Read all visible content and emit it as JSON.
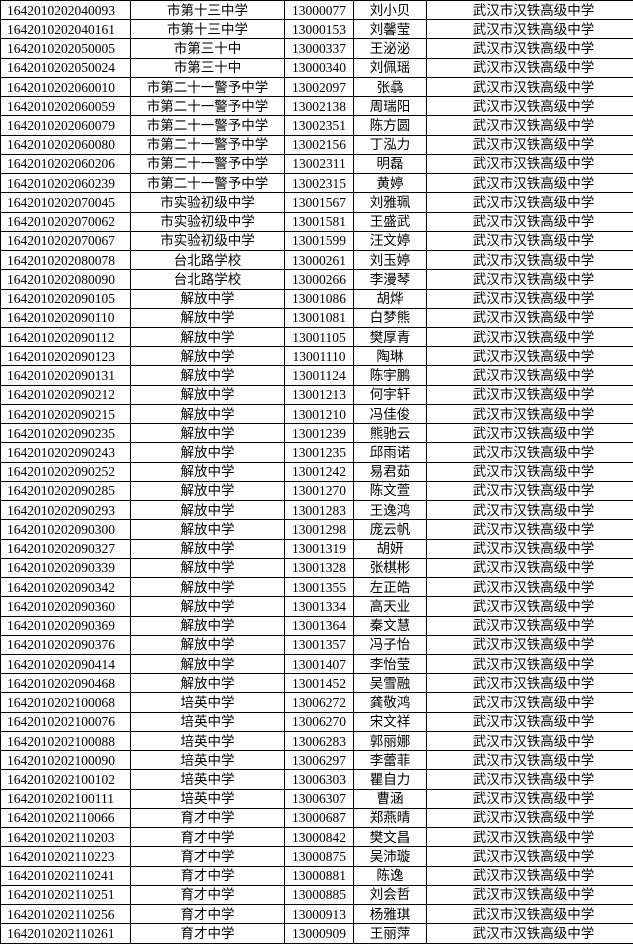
{
  "colors": {
    "background": "#ffffff",
    "border": "#000000",
    "text": "#000000"
  },
  "table": {
    "rows": [
      {
        "exam_id": "1642010202040093",
        "school": "市第十三中学",
        "code": "13000077",
        "name": "刘小贝",
        "admitted": "武汉市汉铁高级中学"
      },
      {
        "exam_id": "1642010202040161",
        "school": "市第十三中学",
        "code": "13000153",
        "name": "刘馨莹",
        "admitted": "武汉市汉铁高级中学"
      },
      {
        "exam_id": "1642010202050005",
        "school": "市第三十中",
        "code": "13000337",
        "name": "王泌泌",
        "admitted": "武汉市汉铁高级中学"
      },
      {
        "exam_id": "1642010202050024",
        "school": "市第三十中",
        "code": "13000340",
        "name": "刘佩瑶",
        "admitted": "武汉市汉铁高级中学"
      },
      {
        "exam_id": "1642010202060010",
        "school": "市第二十一警予中学",
        "code": "13002097",
        "name": "张骉",
        "admitted": "武汉市汉铁高级中学"
      },
      {
        "exam_id": "1642010202060059",
        "school": "市第二十一警予中学",
        "code": "13002138",
        "name": "周瑞阳",
        "admitted": "武汉市汉铁高级中学"
      },
      {
        "exam_id": "1642010202060079",
        "school": "市第二十一警予中学",
        "code": "13002351",
        "name": "陈方圆",
        "admitted": "武汉市汉铁高级中学"
      },
      {
        "exam_id": "1642010202060080",
        "school": "市第二十一警予中学",
        "code": "13002156",
        "name": "丁泓力",
        "admitted": "武汉市汉铁高级中学"
      },
      {
        "exam_id": "1642010202060206",
        "school": "市第二十一警予中学",
        "code": "13002311",
        "name": "明磊",
        "admitted": "武汉市汉铁高级中学"
      },
      {
        "exam_id": "1642010202060239",
        "school": "市第二十一警予中学",
        "code": "13002315",
        "name": "黄婷",
        "admitted": "武汉市汉铁高级中学"
      },
      {
        "exam_id": "1642010202070045",
        "school": "市实验初级中学",
        "code": "13001567",
        "name": "刘雅珮",
        "admitted": "武汉市汉铁高级中学"
      },
      {
        "exam_id": "1642010202070062",
        "school": "市实验初级中学",
        "code": "13001581",
        "name": "王盛武",
        "admitted": "武汉市汉铁高级中学"
      },
      {
        "exam_id": "1642010202070067",
        "school": "市实验初级中学",
        "code": "13001599",
        "name": "汪文婷",
        "admitted": "武汉市汉铁高级中学"
      },
      {
        "exam_id": "1642010202080078",
        "school": "台北路学校",
        "code": "13000261",
        "name": "刘玉婷",
        "admitted": "武汉市汉铁高级中学"
      },
      {
        "exam_id": "1642010202080090",
        "school": "台北路学校",
        "code": "13000266",
        "name": "李漫琴",
        "admitted": "武汉市汉铁高级中学"
      },
      {
        "exam_id": "1642010202090105",
        "school": "解放中学",
        "code": "13001086",
        "name": "胡烨",
        "admitted": "武汉市汉铁高级中学"
      },
      {
        "exam_id": "1642010202090110",
        "school": "解放中学",
        "code": "13001081",
        "name": "白梦熊",
        "admitted": "武汉市汉铁高级中学"
      },
      {
        "exam_id": "1642010202090112",
        "school": "解放中学",
        "code": "13001105",
        "name": "樊厚青",
        "admitted": "武汉市汉铁高级中学"
      },
      {
        "exam_id": "1642010202090123",
        "school": "解放中学",
        "code": "13001110",
        "name": "陶琳",
        "admitted": "武汉市汉铁高级中学"
      },
      {
        "exam_id": "1642010202090131",
        "school": "解放中学",
        "code": "13001124",
        "name": "陈宇鹏",
        "admitted": "武汉市汉铁高级中学"
      },
      {
        "exam_id": "1642010202090212",
        "school": "解放中学",
        "code": "13001213",
        "name": "何宇轩",
        "admitted": "武汉市汉铁高级中学"
      },
      {
        "exam_id": "1642010202090215",
        "school": "解放中学",
        "code": "13001210",
        "name": "冯佳俊",
        "admitted": "武汉市汉铁高级中学"
      },
      {
        "exam_id": "1642010202090235",
        "school": "解放中学",
        "code": "13001239",
        "name": "熊驰云",
        "admitted": "武汉市汉铁高级中学"
      },
      {
        "exam_id": "1642010202090243",
        "school": "解放中学",
        "code": "13001235",
        "name": "邱雨诺",
        "admitted": "武汉市汉铁高级中学"
      },
      {
        "exam_id": "1642010202090252",
        "school": "解放中学",
        "code": "13001242",
        "name": "易君茹",
        "admitted": "武汉市汉铁高级中学"
      },
      {
        "exam_id": "1642010202090285",
        "school": "解放中学",
        "code": "13001270",
        "name": "陈文萱",
        "admitted": "武汉市汉铁高级中学"
      },
      {
        "exam_id": "1642010202090293",
        "school": "解放中学",
        "code": "13001283",
        "name": "王逸鸿",
        "admitted": "武汉市汉铁高级中学"
      },
      {
        "exam_id": "1642010202090300",
        "school": "解放中学",
        "code": "13001298",
        "name": "庞云帆",
        "admitted": "武汉市汉铁高级中学"
      },
      {
        "exam_id": "1642010202090327",
        "school": "解放中学",
        "code": "13001319",
        "name": "胡妍",
        "admitted": "武汉市汉铁高级中学"
      },
      {
        "exam_id": "1642010202090339",
        "school": "解放中学",
        "code": "13001328",
        "name": "张棋彬",
        "admitted": "武汉市汉铁高级中学"
      },
      {
        "exam_id": "1642010202090342",
        "school": "解放中学",
        "code": "13001355",
        "name": "左正皓",
        "admitted": "武汉市汉铁高级中学"
      },
      {
        "exam_id": "1642010202090360",
        "school": "解放中学",
        "code": "13001334",
        "name": "高天业",
        "admitted": "武汉市汉铁高级中学"
      },
      {
        "exam_id": "1642010202090369",
        "school": "解放中学",
        "code": "13001364",
        "name": "秦文慧",
        "admitted": "武汉市汉铁高级中学"
      },
      {
        "exam_id": "1642010202090376",
        "school": "解放中学",
        "code": "13001357",
        "name": "冯子怡",
        "admitted": "武汉市汉铁高级中学"
      },
      {
        "exam_id": "1642010202090414",
        "school": "解放中学",
        "code": "13001407",
        "name": "李怡莹",
        "admitted": "武汉市汉铁高级中学"
      },
      {
        "exam_id": "1642010202090468",
        "school": "解放中学",
        "code": "13001452",
        "name": "吴雪融",
        "admitted": "武汉市汉铁高级中学"
      },
      {
        "exam_id": "1642010202100068",
        "school": "培英中学",
        "code": "13006272",
        "name": "龚敬鸿",
        "admitted": "武汉市汉铁高级中学"
      },
      {
        "exam_id": "1642010202100076",
        "school": "培英中学",
        "code": "13006270",
        "name": "宋文祥",
        "admitted": "武汉市汉铁高级中学"
      },
      {
        "exam_id": "1642010202100088",
        "school": "培英中学",
        "code": "13006283",
        "name": "郭丽娜",
        "admitted": "武汉市汉铁高级中学"
      },
      {
        "exam_id": "1642010202100090",
        "school": "培英中学",
        "code": "13006297",
        "name": "李蕾菲",
        "admitted": "武汉市汉铁高级中学"
      },
      {
        "exam_id": "1642010202100102",
        "school": "培英中学",
        "code": "13006303",
        "name": "瞿自力",
        "admitted": "武汉市汉铁高级中学"
      },
      {
        "exam_id": "1642010202100111",
        "school": "培英中学",
        "code": "13006307",
        "name": "曹涵",
        "admitted": "武汉市汉铁高级中学"
      },
      {
        "exam_id": "1642010202110066",
        "school": "育才中学",
        "code": "13000687",
        "name": "郑燕晴",
        "admitted": "武汉市汉铁高级中学"
      },
      {
        "exam_id": "1642010202110203",
        "school": "育才中学",
        "code": "13000842",
        "name": "樊文昌",
        "admitted": "武汉市汉铁高级中学"
      },
      {
        "exam_id": "1642010202110223",
        "school": "育才中学",
        "code": "13000875",
        "name": "吴沛璇",
        "admitted": "武汉市汉铁高级中学"
      },
      {
        "exam_id": "1642010202110241",
        "school": "育才中学",
        "code": "13000881",
        "name": "陈逸",
        "admitted": "武汉市汉铁高级中学"
      },
      {
        "exam_id": "1642010202110251",
        "school": "育才中学",
        "code": "13000885",
        "name": "刘会哲",
        "admitted": "武汉市汉铁高级中学"
      },
      {
        "exam_id": "1642010202110256",
        "school": "育才中学",
        "code": "13000913",
        "name": "杨雅琪",
        "admitted": "武汉市汉铁高级中学"
      },
      {
        "exam_id": "1642010202110261",
        "school": "育才中学",
        "code": "13000909",
        "name": "王丽萍",
        "admitted": "武汉市汉铁高级中学"
      }
    ]
  }
}
